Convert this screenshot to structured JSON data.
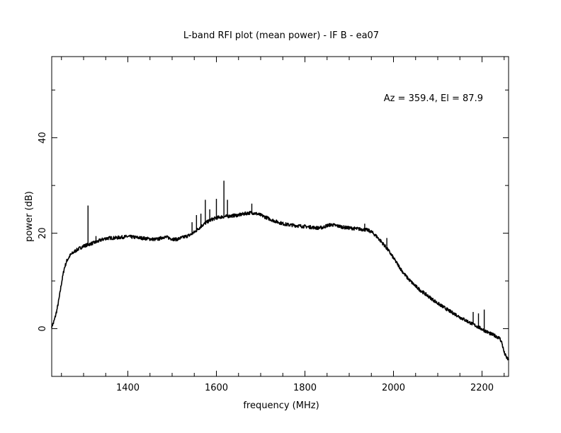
{
  "chart_data": {
    "type": "line",
    "title": "L-band RFI plot (mean power) - IF B - ea07",
    "xlabel": "frequency (MHz)",
    "ylabel": "power (dB)",
    "annotation": "Az = 359.4, El = 87.9",
    "xlim": [
      1228,
      2260
    ],
    "ylim": [
      -10,
      57
    ],
    "x_ticks": [
      1400,
      1600,
      1800,
      2000,
      2200
    ],
    "y_ticks": [
      0,
      20,
      40
    ],
    "grid": false,
    "line_color": "#000000",
    "series": [
      {
        "x": [
          1228,
          1232,
          1236,
          1240,
          1245,
          1250,
          1256,
          1262,
          1270,
          1280,
          1290,
          1300,
          1310,
          1320,
          1330,
          1340,
          1350,
          1360,
          1370,
          1380,
          1390,
          1400,
          1410,
          1420,
          1430,
          1440,
          1450,
          1460,
          1470,
          1480,
          1490,
          1500,
          1510,
          1520,
          1530,
          1540,
          1550,
          1560,
          1570,
          1580,
          1590,
          1600,
          1610,
          1620,
          1630,
          1640,
          1650,
          1660,
          1670,
          1680,
          1690,
          1700,
          1710,
          1720,
          1730,
          1740,
          1750,
          1760,
          1770,
          1780,
          1790,
          1800,
          1810,
          1820,
          1830,
          1840,
          1850,
          1860,
          1870,
          1880,
          1890,
          1900,
          1910,
          1920,
          1930,
          1940,
          1950,
          1960,
          1970,
          1980,
          1990,
          2000,
          2010,
          2020,
          2030,
          2040,
          2050,
          2060,
          2070,
          2080,
          2090,
          2100,
          2110,
          2120,
          2130,
          2140,
          2150,
          2160,
          2170,
          2180,
          2190,
          2200,
          2210,
          2220,
          2230,
          2240,
          2245,
          2250,
          2255,
          2260
        ],
        "y": [
          0.5,
          1.2,
          2.5,
          4.0,
          6.5,
          9.5,
          12.5,
          14.2,
          15.4,
          16.2,
          16.8,
          17.3,
          17.6,
          17.9,
          18.2,
          18.6,
          18.9,
          19.0,
          19.0,
          19.1,
          19.2,
          19.3,
          19.2,
          19.1,
          19.0,
          18.9,
          18.8,
          18.7,
          18.8,
          19.2,
          19.1,
          18.8,
          18.7,
          19.0,
          19.3,
          19.6,
          20.2,
          21.0,
          21.8,
          22.4,
          22.9,
          23.2,
          23.4,
          23.5,
          23.6,
          23.7,
          23.8,
          24.0,
          24.2,
          24.3,
          24.1,
          23.8,
          23.4,
          23.0,
          22.6,
          22.3,
          22.0,
          21.8,
          21.7,
          21.6,
          21.5,
          21.4,
          21.3,
          21.2,
          21.1,
          21.2,
          21.6,
          21.8,
          21.6,
          21.4,
          21.2,
          21.1,
          21.0,
          20.9,
          20.8,
          20.7,
          20.3,
          19.5,
          18.5,
          17.4,
          16.2,
          14.8,
          13.4,
          12.0,
          10.8,
          9.8,
          8.9,
          8.1,
          7.4,
          6.7,
          6.0,
          5.3,
          4.7,
          4.1,
          3.5,
          3.0,
          2.4,
          1.9,
          1.4,
          0.9,
          0.4,
          -0.1,
          -0.6,
          -1.1,
          -1.5,
          -2.0,
          -3.0,
          -5.0,
          -6.0,
          -6.5
        ]
      }
    ],
    "spikes": [
      {
        "x": 1310,
        "y": 25.8
      },
      {
        "x": 1328,
        "y": 19.4
      },
      {
        "x": 1545,
        "y": 22.3
      },
      {
        "x": 1555,
        "y": 23.8
      },
      {
        "x": 1565,
        "y": 24.1
      },
      {
        "x": 1575,
        "y": 27.0
      },
      {
        "x": 1585,
        "y": 25.0
      },
      {
        "x": 1600,
        "y": 27.2
      },
      {
        "x": 1617,
        "y": 31.0
      },
      {
        "x": 1625,
        "y": 27.0
      },
      {
        "x": 1680,
        "y": 26.2
      },
      {
        "x": 1935,
        "y": 22.0
      },
      {
        "x": 1985,
        "y": 19.0
      },
      {
        "x": 2180,
        "y": 3.5
      },
      {
        "x": 2192,
        "y": 3.2
      },
      {
        "x": 2205,
        "y": 4.0
      }
    ]
  }
}
